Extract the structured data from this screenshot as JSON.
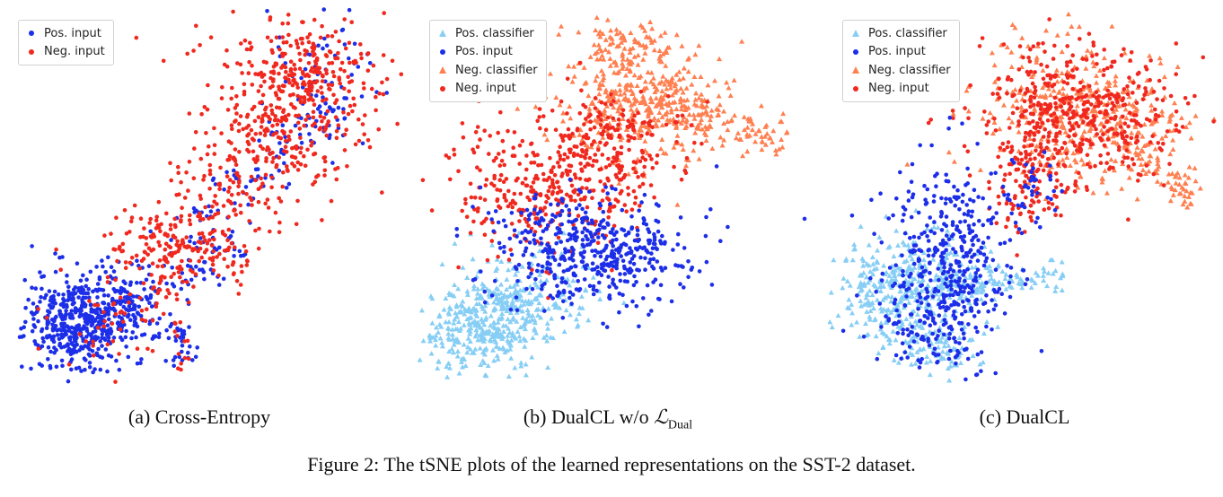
{
  "colors": {
    "pos_input": "#1c2ee8",
    "neg_input": "#f0281e",
    "pos_classifier": "#87cef5",
    "neg_classifier": "#ff7f50"
  },
  "caption": "Figure 2: The tSNE plots of the learned representations on the SST-2 dataset.",
  "chart_data": [
    {
      "type": "scatter",
      "subcaption": "(a) Cross-Entropy",
      "legend_position": "top-left",
      "axes": "off",
      "series": [
        {
          "name": "Pos. input",
          "marker": "circle",
          "color": "#1c2ee8"
        },
        {
          "name": "Neg. input",
          "marker": "circle",
          "color": "#f0281e"
        }
      ]
    },
    {
      "type": "scatter",
      "subcaption": "(b) DualCL w/o ",
      "subcaption_math": "ℒ",
      "subcaption_sub": "Dual",
      "legend_position": "top-left",
      "axes": "off",
      "series": [
        {
          "name": "Pos. classifier",
          "marker": "triangle",
          "color": "#87cef5"
        },
        {
          "name": "Pos. input",
          "marker": "circle",
          "color": "#1c2ee8"
        },
        {
          "name": "Neg. classifier",
          "marker": "triangle",
          "color": "#ff7f50"
        },
        {
          "name": "Neg. input",
          "marker": "circle",
          "color": "#f0281e"
        }
      ]
    },
    {
      "type": "scatter",
      "subcaption": "(c) DualCL",
      "legend_position": "top-left",
      "axes": "off",
      "series": [
        {
          "name": "Pos. classifier",
          "marker": "triangle",
          "color": "#87cef5"
        },
        {
          "name": "Pos. input",
          "marker": "circle",
          "color": "#1c2ee8"
        },
        {
          "name": "Neg. classifier",
          "marker": "triangle",
          "color": "#ff7f50"
        },
        {
          "name": "Neg. input",
          "marker": "circle",
          "color": "#f0281e"
        }
      ]
    }
  ]
}
